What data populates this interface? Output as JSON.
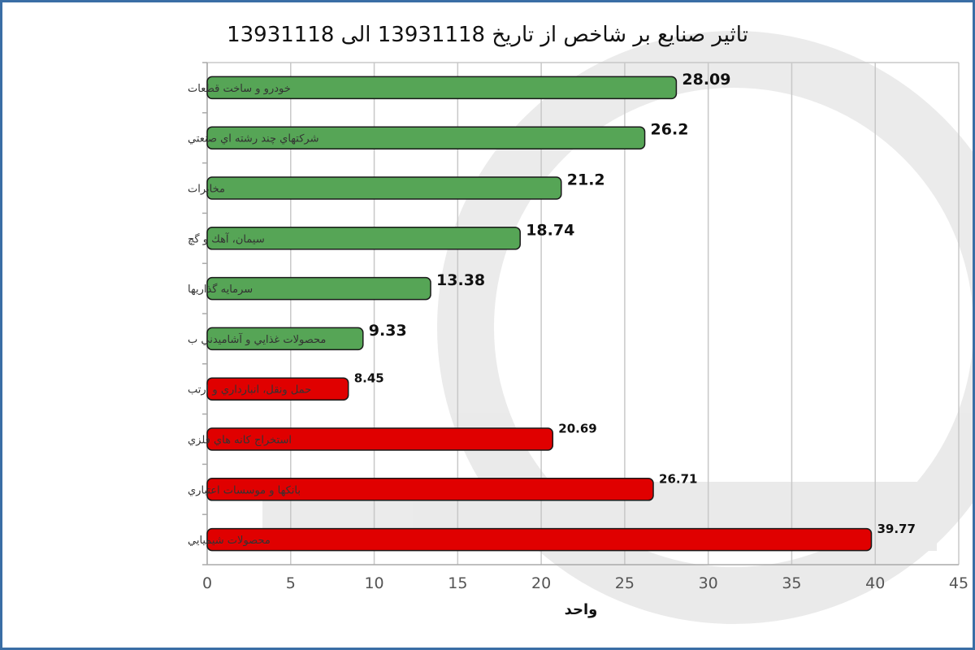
{
  "chart_data": {
    "type": "bar",
    "orientation": "horizontal",
    "title": "تاثیر صنایع بر شاخص از تاریخ 13931118 الی 13931118",
    "xlabel": "واحد",
    "ylabel": "",
    "xlim": [
      0,
      45
    ],
    "x_ticks": [
      "0",
      "5",
      "10",
      "15",
      "20",
      "25",
      "30",
      "35",
      "40",
      "45"
    ],
    "grid": "vertical",
    "legend": "none",
    "categories": [
      "خودرو و ساخت قطعات",
      "شرکتهاي چند رشته اي صنعتي",
      "مخابرات",
      "سيمان، آهك و گچ",
      "سرمايه گذاريها",
      "محصولات غذايي و آشاميدني ب",
      "حمل ونقل، انبارداري و ارتب",
      "استخراج كانه هاي فلزي",
      "بانكها و موسسات اعتباري",
      "محصولات شيميايي"
    ],
    "values": [
      28.09,
      26.2,
      21.2,
      18.74,
      13.38,
      9.33,
      8.45,
      20.69,
      26.71,
      39.77
    ],
    "value_labels": [
      "28.09",
      "26.2",
      "21.2",
      "18.74",
      "13.38",
      "9.33",
      "8.45",
      "20.69",
      "26.71",
      "39.77"
    ],
    "direction": [
      "positive",
      "positive",
      "positive",
      "positive",
      "positive",
      "positive",
      "negative",
      "negative",
      "negative",
      "negative"
    ],
    "colors": {
      "positive": "#56a556",
      "negative": "#e00000",
      "grid": "#c8c8c8",
      "bar_outline": "#1a1a1a"
    }
  }
}
